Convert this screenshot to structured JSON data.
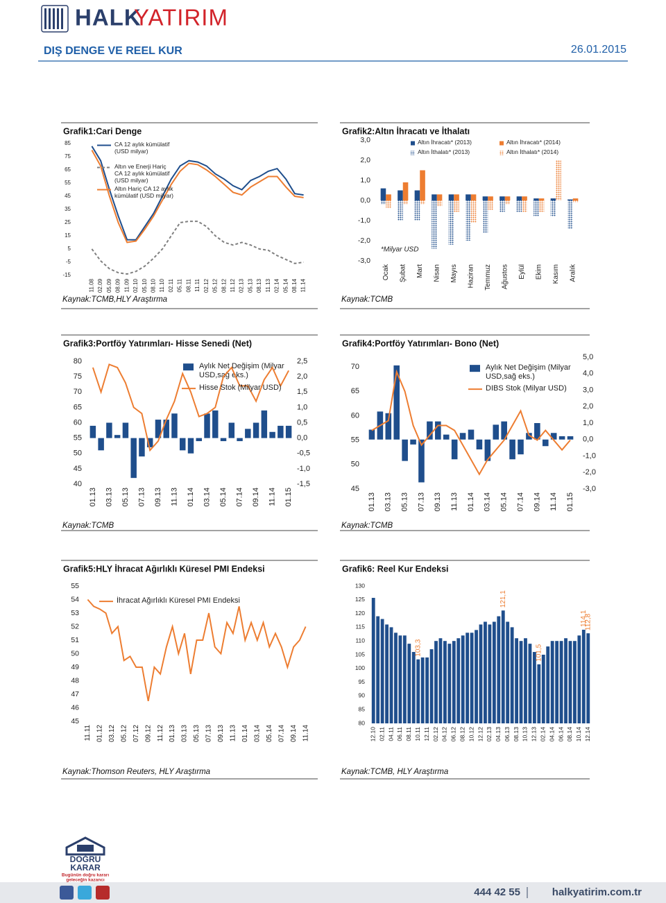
{
  "header": {
    "logo_left": "HALK",
    "logo_right": "YATIRIM",
    "title": "DIŞ DENGE VE REEL KUR",
    "date": "26.01.2015"
  },
  "chart_data": [
    {
      "type": "line",
      "title": "Grafik1:Cari Denge",
      "source": "Kaynak:TCMB,HLY Araştırma",
      "categories": [
        "11.08",
        "02.09",
        "05.09",
        "08.09",
        "11.09",
        "02.10",
        "05.10",
        "08.10",
        "11.10",
        "02.11",
        "05.11",
        "08.11",
        "11.11",
        "02.12",
        "05.12",
        "08.12",
        "11.12",
        "02.13",
        "05.13",
        "08.13",
        "11.13",
        "02.14",
        "05.14",
        "08.14",
        "11.14"
      ],
      "series": [
        {
          "name": "CA 12 aylık kümülatif (USD milyar)",
          "color": "#1f4e8c",
          "line_style": "solid",
          "values": [
            83,
            72,
            50,
            30,
            12,
            12,
            22,
            32,
            45,
            58,
            68,
            72,
            71,
            68,
            62,
            58,
            53,
            50,
            57,
            60,
            64,
            66,
            58,
            47,
            46
          ]
        },
        {
          "name": "Altın ve Enerji Hariç CA 12 aylık kümülatif (USD milyar)",
          "color": "#7f7f7f",
          "line_style": "dashed",
          "values": [
            5,
            -4,
            -10,
            -13,
            -14,
            -12,
            -8,
            -2,
            5,
            15,
            25,
            26,
            26,
            22,
            15,
            10,
            8,
            10,
            8,
            5,
            4,
            0,
            -3,
            -6,
            -5
          ]
        },
        {
          "name": "Altın Hariç CA 12 aylık kümülatif (USD milyar)",
          "color": "#ed7d31",
          "line_style": "solid",
          "values": [
            80,
            68,
            45,
            25,
            10,
            11,
            20,
            30,
            42,
            54,
            64,
            70,
            69,
            65,
            60,
            54,
            48,
            46,
            52,
            56,
            60,
            60,
            52,
            45,
            44
          ]
        }
      ],
      "ylim": [
        -15,
        85
      ],
      "yticks": [
        -15,
        -5,
        5,
        15,
        25,
        35,
        45,
        55,
        65,
        75,
        85
      ]
    },
    {
      "type": "bar",
      "title": "Grafik2:Altın İhracatı ve İthalatı",
      "annotation": "*Milyar USD",
      "source": "Kaynak:TCMB",
      "categories": [
        "Ocak",
        "Şubat",
        "Mart",
        "Nisan",
        "Mayıs",
        "Haziran",
        "Temmuz",
        "Ağustos",
        "Eylül",
        "Ekim",
        "Kasım",
        "Aralık"
      ],
      "series": [
        {
          "name": "Altın İhracatı* (2013)",
          "color": "#1f4e8c",
          "pattern": "solid",
          "values": [
            0.6,
            0.5,
            0.5,
            0.3,
            0.3,
            0.3,
            0.2,
            0.2,
            0.2,
            0.1,
            0.1,
            0.05
          ]
        },
        {
          "name": "Altın İthalatı* (2013)",
          "color": "#1f4e8c",
          "pattern": "dotted",
          "values": [
            -0.2,
            -1.0,
            -1.0,
            -2.4,
            -2.2,
            -2.0,
            -1.6,
            -0.6,
            -0.6,
            -0.8,
            -0.8,
            -1.4
          ]
        },
        {
          "name": "Altın İhracatı* (2014)",
          "color": "#ed7d31",
          "pattern": "solid",
          "values": [
            0.3,
            0.9,
            1.5,
            0.3,
            0.3,
            0.3,
            0.2,
            0.2,
            0.2,
            0.1,
            0.2,
            0.1
          ]
        },
        {
          "name": "Altın İthalatı* (2014)",
          "color": "#ed7d31",
          "pattern": "dotted",
          "values": [
            -0.4,
            -0.2,
            -0.2,
            -0.3,
            -0.6,
            -1.1,
            -0.5,
            -0.2,
            -0.6,
            -0.6,
            2.0,
            -0.1
          ]
        }
      ],
      "ylim": [
        -3,
        3
      ],
      "yticks": [
        {
          "value": -3,
          "label": "-3,0"
        },
        {
          "value": -2,
          "label": "-2,0"
        },
        {
          "value": -1,
          "label": "-1,0"
        },
        {
          "value": 0,
          "label": "0,0"
        },
        {
          "value": 1,
          "label": "1,0"
        },
        {
          "value": 2,
          "label": "2,0"
        },
        {
          "value": 3,
          "label": "3,0"
        }
      ]
    },
    {
      "type": "combo",
      "title": "Grafik3:Portföy Yatırımları- Hisse Senedi (Net)",
      "source": "Kaynak:TCMB",
      "categories": [
        "01.13",
        null,
        "03.13",
        null,
        "05.13",
        null,
        "07.13",
        null,
        "09.13",
        null,
        "11.13",
        null,
        "01.14",
        null,
        "03.14",
        null,
        "05.14",
        null,
        "07.14",
        null,
        "09.14",
        null,
        "11.14",
        null,
        "01.15"
      ],
      "series": [
        {
          "name": "Aylık Net Değişim (Milyar USD,sağ eks.)",
          "color": "#1f4e8c",
          "kind": "bar",
          "axis": "y2",
          "values": [
            0.4,
            -0.4,
            0.5,
            0.1,
            0.5,
            -1.3,
            -0.6,
            -0.3,
            0.6,
            0.6,
            0.8,
            -0.4,
            -0.5,
            -0.1,
            0.8,
            0.9,
            -0.1,
            0.5,
            -0.1,
            0.3,
            0.5,
            0.9,
            0.2,
            0.4,
            0.4
          ]
        },
        {
          "name": "Hisse Stok (Milyar USD)",
          "color": "#ed7d31",
          "kind": "line",
          "line_style": "solid",
          "values": [
            78,
            70,
            79,
            78,
            73,
            65,
            63,
            51,
            54,
            61,
            67,
            76,
            70,
            62,
            63,
            65,
            75,
            78,
            72,
            72,
            67,
            74,
            78,
            72,
            77
          ]
        }
      ],
      "ylim": [
        40,
        80
      ],
      "yticks": [
        40,
        45,
        50,
        55,
        60,
        65,
        70,
        75,
        80
      ],
      "y2lim": [
        -1.5,
        2.5
      ],
      "y2ticks": [
        {
          "value": -1.5,
          "label": "-1,5"
        },
        {
          "value": -1,
          "label": "-1,0"
        },
        {
          "value": -0.5,
          "label": "-0,5"
        },
        {
          "value": 0,
          "label": "0,0"
        },
        {
          "value": 0.5,
          "label": "0,5"
        },
        {
          "value": 1,
          "label": "1,0"
        },
        {
          "value": 1.5,
          "label": "1,5"
        },
        {
          "value": 2,
          "label": "2,0"
        },
        {
          "value": 2.5,
          "label": "2,5"
        }
      ]
    },
    {
      "type": "combo",
      "title": "Grafik4:Portföy Yatırımları- Bono (Net)",
      "source": "Kaynak:TCMB",
      "categories": [
        "01.13",
        null,
        "03.13",
        null,
        "05.13",
        null,
        "07.13",
        null,
        "09.13",
        null,
        "11.13",
        null,
        "01.14",
        null,
        "03.14",
        null,
        "05.14",
        null,
        "07.14",
        null,
        "09.14",
        null,
        "11.14",
        null,
        "01.15"
      ],
      "series": [
        {
          "name": "Aylık Net Değişim (Milyar USD,sağ eks.)",
          "color": "#1f4e8c",
          "kind": "bar",
          "axis": "y2",
          "values": [
            0.6,
            1.7,
            1.6,
            4.5,
            -1.3,
            -0.3,
            -2.6,
            1.1,
            1.1,
            0.3,
            -1.2,
            0.4,
            0.6,
            -0.6,
            -1.3,
            0.9,
            1.1,
            -1.2,
            -0.9,
            0.4,
            1.0,
            -0.4,
            0.4,
            0.2,
            0.2
          ]
        },
        {
          "name": "DIBS Stok (Milyar USD)",
          "color": "#ed7d31",
          "kind": "line",
          "line_style": "solid",
          "values": [
            57,
            58,
            59,
            69,
            65,
            58,
            54,
            56,
            58,
            58,
            57,
            54,
            51,
            48,
            51,
            53,
            55,
            58,
            61,
            56,
            55,
            57,
            55,
            53,
            55
          ]
        }
      ],
      "ylim": [
        45,
        72
      ],
      "yticks": [
        45,
        50,
        55,
        60,
        65,
        70
      ],
      "y2lim": [
        -3,
        5
      ],
      "y2ticks": [
        {
          "value": -3,
          "label": "-3,0"
        },
        {
          "value": -2,
          "label": "-2,0"
        },
        {
          "value": -1,
          "label": "-1,0"
        },
        {
          "value": 0,
          "label": "0,0"
        },
        {
          "value": 1,
          "label": "1,0"
        },
        {
          "value": 2,
          "label": "2,0"
        },
        {
          "value": 3,
          "label": "3,0"
        },
        {
          "value": 4,
          "label": "4,0"
        },
        {
          "value": 5,
          "label": "5,0"
        }
      ]
    },
    {
      "type": "line",
      "title": "Grafik5:HLY İhracat Ağırlıklı Küresel PMI Endeksi",
      "source": "Kaynak:Thomson Reuters, HLY Araştırma",
      "categories": [
        "11.11",
        null,
        "01.12",
        null,
        "03.12",
        null,
        "05.12",
        null,
        "07.12",
        null,
        "09.12",
        null,
        "11.12",
        null,
        "01.13",
        null,
        "03.13",
        null,
        "05.13",
        null,
        "07.13",
        null,
        "09.13",
        null,
        "11.13",
        null,
        "01.14",
        null,
        "03.14",
        null,
        "05.14",
        null,
        "07.14",
        null,
        "09.14",
        null,
        "11.14"
      ],
      "series": [
        {
          "name": "İhracat Ağırlıklı Küresel PMI Endeksi",
          "color": "#ed7d31",
          "line_style": "solid",
          "values": [
            54.0,
            53.5,
            53.3,
            53.0,
            51.5,
            52.0,
            49.5,
            49.8,
            49.0,
            49.0,
            46.5,
            49.0,
            48.5,
            50.5,
            52.0,
            50.0,
            51.5,
            48.5,
            51.0,
            51.0,
            53.0,
            50.5,
            50.0,
            52.3,
            51.5,
            53.5,
            51.0,
            52.3,
            51.0,
            52.3,
            50.5,
            51.5,
            50.5,
            49.0,
            50.5,
            51.0,
            52.0
          ]
        }
      ],
      "ylim": [
        45,
        55
      ],
      "yticks": [
        45,
        46,
        47,
        48,
        49,
        50,
        51,
        52,
        53,
        54,
        55
      ]
    },
    {
      "type": "bar",
      "title": "Grafik6: Reel Kur Endeksi",
      "source": "Kaynak:TCMB, HLY Araştırma",
      "categories": [
        "12.10",
        null,
        "02.11",
        null,
        "04.11",
        null,
        "06.11",
        null,
        "08.11",
        null,
        "10.11",
        null,
        "12.11",
        null,
        "02.12",
        null,
        "04.12",
        null,
        "06.12",
        null,
        "08.12",
        null,
        "10.12",
        null,
        "12.12",
        null,
        "02.13",
        null,
        "04.13",
        null,
        "06.13",
        null,
        "08.13",
        null,
        "10.13",
        null,
        "12.13",
        null,
        "02.14",
        null,
        "04.14",
        null,
        "06.14",
        null,
        "08.14",
        null,
        "10.14",
        null,
        "12.14"
      ],
      "values": [
        125.7,
        119,
        118,
        116,
        115,
        113,
        112,
        112,
        109,
        106,
        103.3,
        104,
        104,
        107,
        110,
        111,
        110,
        109,
        110,
        111,
        112,
        113,
        113,
        114,
        116,
        117,
        116,
        117,
        119,
        121.1,
        117,
        115,
        111,
        110,
        111,
        109,
        106,
        101.5,
        105,
        108,
        110,
        110,
        110,
        111,
        110,
        110,
        112,
        114.1,
        112.8
      ],
      "value_labels": [
        null,
        null,
        null,
        null,
        null,
        null,
        null,
        null,
        null,
        null,
        "103,3",
        null,
        null,
        null,
        null,
        null,
        null,
        null,
        null,
        null,
        null,
        null,
        null,
        null,
        null,
        null,
        null,
        null,
        null,
        "121,1",
        null,
        null,
        null,
        null,
        null,
        null,
        null,
        "101,5",
        null,
        null,
        null,
        null,
        null,
        null,
        null,
        null,
        null,
        "114,1",
        "112,8"
      ],
      "color": "#1f4e8c",
      "value_label_color": "#ed7d31",
      "ylim": [
        80,
        130
      ],
      "yticks": [
        80,
        85,
        90,
        95,
        100,
        105,
        110,
        115,
        120,
        125,
        130
      ]
    }
  ],
  "footer": {
    "brand_top": "DOĞRU",
    "brand_bottom": "KARAR",
    "slogan_1": "Bugünün doğru kararı",
    "slogan_2": "geleceğin kazancı",
    "phone": "444 42 55",
    "web": "halkyatirim.com.tr"
  }
}
